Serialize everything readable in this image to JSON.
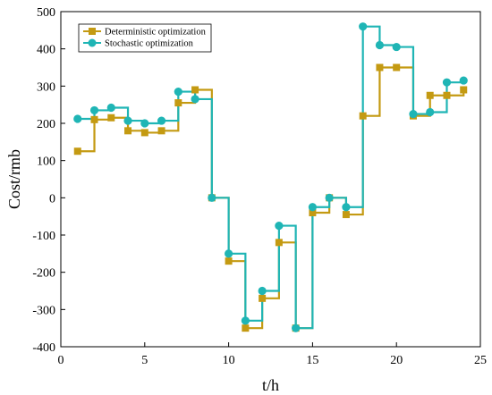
{
  "chart_data": {
    "type": "line",
    "step": "post",
    "xlabel": "t/h",
    "ylabel": "Cost/rmb",
    "xlim": [
      0,
      25
    ],
    "ylim": [
      -400,
      500
    ],
    "xticks": [
      0,
      5,
      10,
      15,
      20,
      25
    ],
    "yticks": [
      -400,
      -300,
      -200,
      -100,
      0,
      100,
      200,
      300,
      400,
      500
    ],
    "grid": false,
    "legend_position": "top-left",
    "x": [
      1,
      2,
      3,
      4,
      5,
      6,
      7,
      8,
      9,
      10,
      11,
      12,
      13,
      14,
      15,
      16,
      17,
      18,
      19,
      20,
      21,
      22,
      23,
      24
    ],
    "series": [
      {
        "name": "Deterministic optimization",
        "color": "#c49a12",
        "marker": "square",
        "values": [
          125,
          210,
          215,
          180,
          175,
          180,
          255,
          290,
          0,
          -170,
          -350,
          -270,
          -120,
          -350,
          -40,
          0,
          -45,
          220,
          350,
          350,
          220,
          275,
          275,
          290
        ]
      },
      {
        "name": "Stochastic optimization",
        "color": "#1fb5b5",
        "marker": "circle",
        "values": [
          212,
          235,
          242,
          207,
          200,
          207,
          285,
          265,
          0,
          -150,
          -330,
          -250,
          -75,
          -350,
          -25,
          0,
          -25,
          460,
          410,
          405,
          225,
          230,
          310,
          315
        ]
      }
    ]
  }
}
